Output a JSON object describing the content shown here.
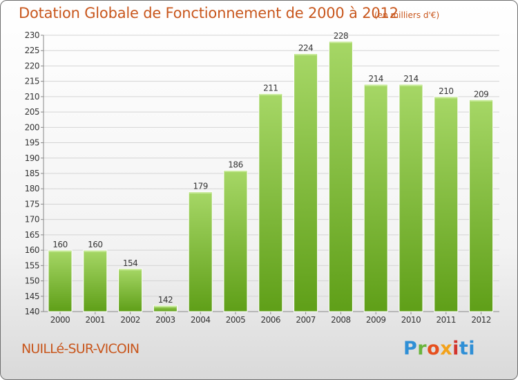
{
  "header": {
    "title": "Dotation Globale de Fonctionnement de 2000 à 2012",
    "unit": "(en milliers d'€)"
  },
  "footer": {
    "commune": "NUILLé-SUR-VICOIN",
    "logo_letters": [
      "P",
      "r",
      "o",
      "x",
      "i",
      "ti"
    ]
  },
  "colors": {
    "title": "#c8561c",
    "bar_light": "#9fd35a",
    "bar_dark": "#5f9f18",
    "grid": "#d4d4d4"
  },
  "chart_data": {
    "type": "bar",
    "title": "Dotation Globale de Fonctionnement de 2000 à 2012",
    "subtitle": "(en milliers d'€)",
    "xlabel": "",
    "ylabel": "",
    "categories": [
      "2000",
      "2001",
      "2002",
      "2003",
      "2004",
      "2005",
      "2006",
      "2007",
      "2008",
      "2009",
      "2010",
      "2011",
      "2012"
    ],
    "values": [
      160,
      160,
      154,
      142,
      179,
      186,
      211,
      224,
      228,
      214,
      214,
      210,
      209
    ],
    "ylim": [
      140,
      230
    ],
    "yticks": [
      140,
      145,
      150,
      155,
      160,
      165,
      170,
      175,
      180,
      185,
      190,
      195,
      200,
      205,
      210,
      215,
      220,
      225,
      230
    ],
    "grid": true,
    "legend": "none"
  }
}
